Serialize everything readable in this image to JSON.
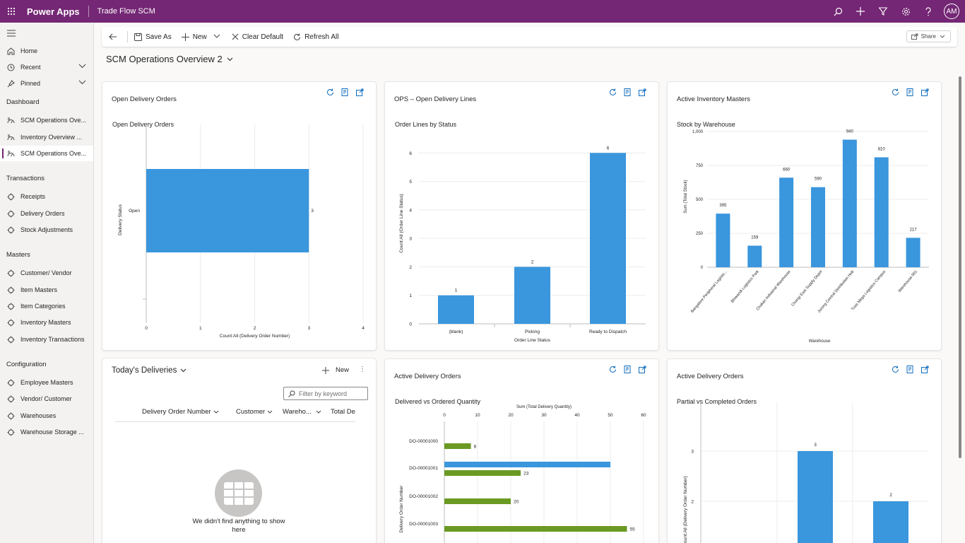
{
  "header": {
    "brand": "Power Apps",
    "app_name": "Trade Flow SCM",
    "avatar": "AM"
  },
  "sidebar": {
    "items_top": [
      {
        "label": "Home",
        "icon": "home-icon"
      },
      {
        "label": "Recent",
        "icon": "clock-icon"
      },
      {
        "label": "Pinned",
        "icon": "pin-icon"
      }
    ],
    "sections": [
      {
        "title": "Dashboard",
        "items": [
          "SCM Operations Ove...",
          "Inventory Overview ...",
          "SCM Operations Ove..."
        ]
      },
      {
        "title": "Transactions",
        "items": [
          "Receipts",
          "Delivery Orders",
          "Stock Adjustments"
        ]
      },
      {
        "title": "Masters",
        "items": [
          "Customer/ Vendor",
          "Item Masters",
          "Item Categories",
          "Inventory Masters",
          "Inventory Transactions"
        ]
      },
      {
        "title": "Configuration",
        "items": [
          "Employee Masters",
          "Vendor/ Customer",
          "Warehouses",
          "Warehouse Storage ..."
        ]
      }
    ]
  },
  "toolbar": {
    "save_as": "Save As",
    "new": "New",
    "clear_default": "Clear Default",
    "refresh_all": "Refresh All",
    "share": "Share"
  },
  "dashboard": {
    "title": "SCM Operations Overview 2"
  },
  "cards": {
    "c1": {
      "title": "Open Delivery Orders"
    },
    "c2": {
      "title": "OPS – Open Delivery Lines"
    },
    "c3": {
      "title": "Active Inventory Masters"
    },
    "c5": {
      "title": "Active Delivery Orders"
    },
    "c6": {
      "title": "Active Delivery Orders"
    }
  },
  "grid": {
    "title": "Today's Deliveries",
    "new_label": "New",
    "filter_placeholder": "Filter by keyword",
    "columns": [
      "Delivery Order Number",
      "Customer",
      "Wareho...",
      "Total De"
    ],
    "empty_text": "We didn't find anything to show here"
  },
  "colors": {
    "bar_blue": "#3a96dd",
    "bar_green": "#6a9a23",
    "header_purple": "#742774"
  },
  "chart_data": [
    {
      "id": "c1",
      "type": "bar",
      "orientation": "horizontal",
      "title": "Open Delivery Orders",
      "xlabel": "Count:All (Delivery Order Number)",
      "ylabel": "Delivery Status",
      "categories": [
        "Open"
      ],
      "values": [
        3
      ],
      "xlim": [
        0,
        4
      ],
      "xticks": [
        0,
        1,
        2,
        3,
        4
      ]
    },
    {
      "id": "c2",
      "type": "bar",
      "title": "Order Lines by Status",
      "xlabel": "Order Line Status",
      "ylabel": "Count:All (Order Line Status)",
      "categories": [
        "(blank)",
        "Picking",
        "Ready to Dispatch"
      ],
      "values": [
        1,
        2,
        6
      ],
      "ylim": [
        0,
        7
      ],
      "yticks": [
        0,
        1,
        2,
        3,
        4,
        5,
        6
      ]
    },
    {
      "id": "c3",
      "type": "bar",
      "title": "Stock by Warehouse",
      "xlabel": "Warehouse",
      "ylabel": "Sum (Total Stock)",
      "categories": [
        "Bangalore Peripheral Logistic...",
        "Bhiwandi Logistics Park",
        "Chakan Industrial Warehouse",
        "Changi East Supply Depot",
        "Jurong Central Distribution Hub",
        "Tuas Mega Logistics Campus",
        "Warehouse 001"
      ],
      "values": [
        395,
        159,
        660,
        590,
        940,
        810,
        217
      ],
      "ylim": [
        0,
        1000
      ],
      "yticks": [
        "0",
        "250",
        "500",
        "750",
        "1,000"
      ]
    },
    {
      "id": "c5",
      "type": "bar",
      "orientation": "horizontal",
      "title": "Delivered vs Ordered Quantity",
      "xlabel": "Sum (Total Delivery Quantity)",
      "ylabel": "Delivery Order Number",
      "categories": [
        "DO-00001000",
        "DO-00001001",
        "DO-00001002",
        "DO-00001003"
      ],
      "series": [
        {
          "color": "#3a96dd",
          "values": [
            null,
            50,
            null,
            null
          ]
        },
        {
          "color": "#6a9a23",
          "values": [
            8,
            23,
            20,
            55
          ]
        }
      ],
      "xlim": [
        0,
        60
      ],
      "xticks": [
        0,
        10,
        20,
        30,
        40,
        50,
        60
      ]
    },
    {
      "id": "c6",
      "type": "bar",
      "title": "Partial vs Completed Orders",
      "ylabel": "Count:All (Delivery Order Number)",
      "categories": [
        "",
        ""
      ],
      "values": [
        3,
        2
      ],
      "yticks": [
        2,
        3
      ]
    }
  ]
}
